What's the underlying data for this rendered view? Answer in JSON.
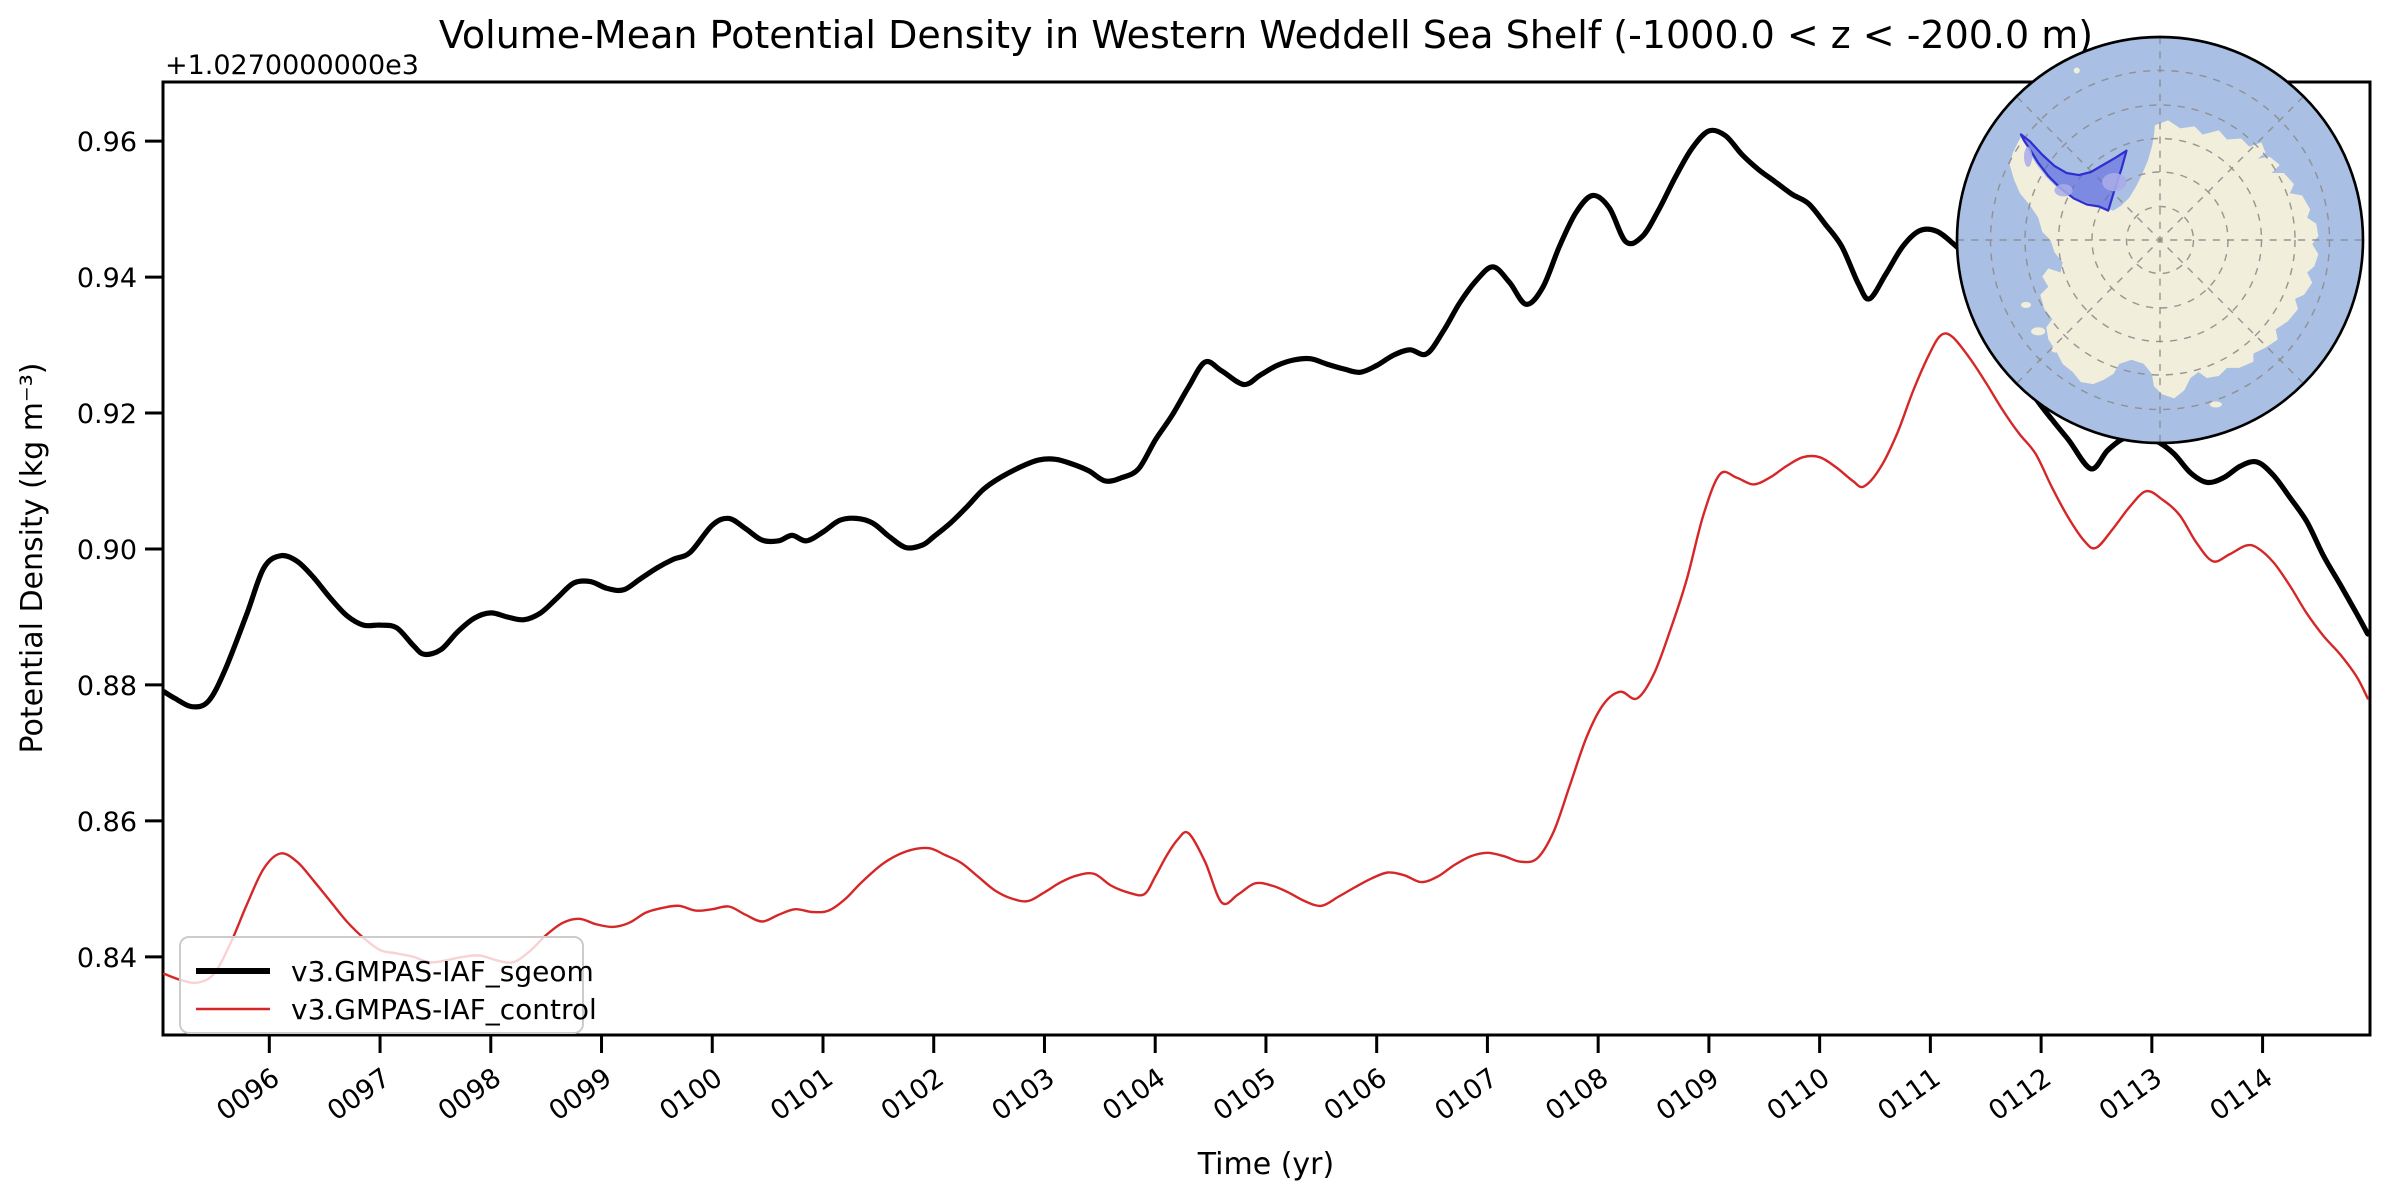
{
  "chart_data": {
    "type": "line",
    "title": "Volume-Mean Potential Density in Western Weddell Sea Shelf (-1000.0 < z < -200.0 m)",
    "xlabel": "Time (yr)",
    "ylabel": "Potential Density (kg m⁻³)",
    "y_offset_text": "+1.0270000000e3",
    "xlim": [
      95.04,
      114.97
    ],
    "ylim": [
      0.8285,
      0.9687
    ],
    "grid": false,
    "legend_position": "lower left",
    "x_tick_values": [
      96,
      97,
      98,
      99,
      100,
      101,
      102,
      103,
      104,
      105,
      106,
      107,
      108,
      109,
      110,
      111,
      112,
      113,
      114
    ],
    "x_tick_labels": [
      "0096",
      "0097",
      "0098",
      "0099",
      "0100",
      "0101",
      "0102",
      "0103",
      "0104",
      "0105",
      "0106",
      "0107",
      "0108",
      "0109",
      "0110",
      "0111",
      "0112",
      "0113",
      "0114"
    ],
    "y_tick_values": [
      0.84,
      0.86,
      0.88,
      0.9,
      0.92,
      0.94,
      0.96
    ],
    "y_tick_labels": [
      "0.84",
      "0.86",
      "0.88",
      "0.90",
      "0.92",
      "0.94",
      "0.96"
    ],
    "series": [
      {
        "name": "v3.GMPAS-IAF_sgeom",
        "color": "#000000",
        "linewidth": 5.2,
        "points": [
          [
            95.05,
            0.879
          ],
          [
            95.15,
            0.878
          ],
          [
            95.3,
            0.8768
          ],
          [
            95.45,
            0.8776
          ],
          [
            95.6,
            0.8822
          ],
          [
            95.8,
            0.8906
          ],
          [
            95.95,
            0.8972
          ],
          [
            96.1,
            0.899
          ],
          [
            96.25,
            0.8982
          ],
          [
            96.4,
            0.8958
          ],
          [
            96.55,
            0.8928
          ],
          [
            96.7,
            0.8902
          ],
          [
            96.85,
            0.8888
          ],
          [
            97.0,
            0.8888
          ],
          [
            97.15,
            0.8884
          ],
          [
            97.3,
            0.8858
          ],
          [
            97.4,
            0.8845
          ],
          [
            97.55,
            0.8852
          ],
          [
            97.7,
            0.8878
          ],
          [
            97.85,
            0.8898
          ],
          [
            98.0,
            0.8906
          ],
          [
            98.15,
            0.89
          ],
          [
            98.3,
            0.8896
          ],
          [
            98.45,
            0.8906
          ],
          [
            98.6,
            0.8928
          ],
          [
            98.75,
            0.895
          ],
          [
            98.9,
            0.8952
          ],
          [
            99.05,
            0.8942
          ],
          [
            99.2,
            0.894
          ],
          [
            99.35,
            0.8956
          ],
          [
            99.5,
            0.8972
          ],
          [
            99.65,
            0.8985
          ],
          [
            99.8,
            0.8995
          ],
          [
            100.0,
            0.9035
          ],
          [
            100.15,
            0.9045
          ],
          [
            100.3,
            0.903
          ],
          [
            100.45,
            0.9013
          ],
          [
            100.6,
            0.9012
          ],
          [
            100.72,
            0.902
          ],
          [
            100.85,
            0.9012
          ],
          [
            101.0,
            0.9025
          ],
          [
            101.15,
            0.9042
          ],
          [
            101.3,
            0.9045
          ],
          [
            101.45,
            0.9038
          ],
          [
            101.6,
            0.9018
          ],
          [
            101.75,
            0.9002
          ],
          [
            101.9,
            0.9006
          ],
          [
            102.0,
            0.9018
          ],
          [
            102.15,
            0.9038
          ],
          [
            102.3,
            0.9062
          ],
          [
            102.45,
            0.9088
          ],
          [
            102.6,
            0.9105
          ],
          [
            102.8,
            0.9122
          ],
          [
            102.95,
            0.9131
          ],
          [
            103.1,
            0.9132
          ],
          [
            103.25,
            0.9125
          ],
          [
            103.4,
            0.9115
          ],
          [
            103.55,
            0.91
          ],
          [
            103.7,
            0.9105
          ],
          [
            103.85,
            0.9118
          ],
          [
            104.0,
            0.916
          ],
          [
            104.15,
            0.9196
          ],
          [
            104.3,
            0.9238
          ],
          [
            104.45,
            0.9275
          ],
          [
            104.6,
            0.9262
          ],
          [
            104.8,
            0.9242
          ],
          [
            104.95,
            0.9256
          ],
          [
            105.1,
            0.927
          ],
          [
            105.25,
            0.9278
          ],
          [
            105.4,
            0.928
          ],
          [
            105.55,
            0.9272
          ],
          [
            105.7,
            0.9265
          ],
          [
            105.85,
            0.926
          ],
          [
            106.0,
            0.927
          ],
          [
            106.15,
            0.9285
          ],
          [
            106.3,
            0.9293
          ],
          [
            106.45,
            0.9287
          ],
          [
            106.6,
            0.932
          ],
          [
            106.75,
            0.9362
          ],
          [
            106.9,
            0.9395
          ],
          [
            107.05,
            0.9415
          ],
          [
            107.2,
            0.9392
          ],
          [
            107.35,
            0.936
          ],
          [
            107.5,
            0.9385
          ],
          [
            107.65,
            0.9445
          ],
          [
            107.8,
            0.9495
          ],
          [
            107.95,
            0.952
          ],
          [
            108.1,
            0.9502
          ],
          [
            108.25,
            0.9452
          ],
          [
            108.4,
            0.946
          ],
          [
            108.55,
            0.95
          ],
          [
            108.7,
            0.9548
          ],
          [
            108.85,
            0.959
          ],
          [
            109.0,
            0.9615
          ],
          [
            109.15,
            0.9608
          ],
          [
            109.3,
            0.958
          ],
          [
            109.45,
            0.9558
          ],
          [
            109.6,
            0.954
          ],
          [
            109.75,
            0.9522
          ],
          [
            109.9,
            0.9508
          ],
          [
            110.05,
            0.9478
          ],
          [
            110.2,
            0.9445
          ],
          [
            110.35,
            0.939
          ],
          [
            110.45,
            0.9368
          ],
          [
            110.6,
            0.9405
          ],
          [
            110.75,
            0.9445
          ],
          [
            110.9,
            0.9468
          ],
          [
            111.05,
            0.9468
          ],
          [
            111.2,
            0.945
          ],
          [
            111.35,
            0.9425
          ],
          [
            111.5,
            0.938
          ],
          [
            111.65,
            0.932
          ],
          [
            111.8,
            0.9262
          ],
          [
            111.95,
            0.9222
          ],
          [
            112.1,
            0.919
          ],
          [
            112.25,
            0.916
          ],
          [
            112.45,
            0.9118
          ],
          [
            112.6,
            0.9145
          ],
          [
            112.75,
            0.9163
          ],
          [
            112.9,
            0.9165
          ],
          [
            113.05,
            0.9158
          ],
          [
            113.2,
            0.914
          ],
          [
            113.35,
            0.9112
          ],
          [
            113.5,
            0.9098
          ],
          [
            113.65,
            0.9105
          ],
          [
            113.8,
            0.9122
          ],
          [
            113.95,
            0.9128
          ],
          [
            114.1,
            0.9108
          ],
          [
            114.25,
            0.9075
          ],
          [
            114.4,
            0.904
          ],
          [
            114.55,
            0.899
          ],
          [
            114.7,
            0.8948
          ],
          [
            114.85,
            0.8905
          ],
          [
            114.95,
            0.8875
          ]
        ]
      },
      {
        "name": "v3.GMPAS-IAF_control",
        "color": "#d62728",
        "linewidth": 2.4,
        "points": [
          [
            95.05,
            0.8375
          ],
          [
            95.2,
            0.8366
          ],
          [
            95.35,
            0.8362
          ],
          [
            95.5,
            0.8375
          ],
          [
            95.65,
            0.842
          ],
          [
            95.8,
            0.8478
          ],
          [
            95.95,
            0.853
          ],
          [
            96.1,
            0.8552
          ],
          [
            96.25,
            0.854
          ],
          [
            96.4,
            0.8512
          ],
          [
            96.55,
            0.8482
          ],
          [
            96.7,
            0.8452
          ],
          [
            96.85,
            0.8428
          ],
          [
            97.0,
            0.841
          ],
          [
            97.15,
            0.8405
          ],
          [
            97.3,
            0.84
          ],
          [
            97.45,
            0.8392
          ],
          [
            97.6,
            0.8395
          ],
          [
            97.75,
            0.84
          ],
          [
            97.9,
            0.8402
          ],
          [
            98.05,
            0.8395
          ],
          [
            98.2,
            0.8392
          ],
          [
            98.35,
            0.8408
          ],
          [
            98.5,
            0.8432
          ],
          [
            98.65,
            0.845
          ],
          [
            98.8,
            0.8456
          ],
          [
            98.95,
            0.8448
          ],
          [
            99.1,
            0.8444
          ],
          [
            99.25,
            0.845
          ],
          [
            99.4,
            0.8465
          ],
          [
            99.55,
            0.8472
          ],
          [
            99.7,
            0.8475
          ],
          [
            99.85,
            0.8468
          ],
          [
            100.0,
            0.847
          ],
          [
            100.15,
            0.8474
          ],
          [
            100.3,
            0.8462
          ],
          [
            100.45,
            0.8452
          ],
          [
            100.6,
            0.8462
          ],
          [
            100.75,
            0.847
          ],
          [
            100.9,
            0.8466
          ],
          [
            101.05,
            0.8468
          ],
          [
            101.2,
            0.8485
          ],
          [
            101.35,
            0.851
          ],
          [
            101.55,
            0.8538
          ],
          [
            101.75,
            0.8555
          ],
          [
            101.95,
            0.856
          ],
          [
            102.1,
            0.855
          ],
          [
            102.25,
            0.8538
          ],
          [
            102.4,
            0.8518
          ],
          [
            102.55,
            0.8498
          ],
          [
            102.7,
            0.8486
          ],
          [
            102.85,
            0.8482
          ],
          [
            103.0,
            0.8495
          ],
          [
            103.15,
            0.851
          ],
          [
            103.3,
            0.852
          ],
          [
            103.45,
            0.8522
          ],
          [
            103.6,
            0.8505
          ],
          [
            103.75,
            0.8495
          ],
          [
            103.9,
            0.8492
          ],
          [
            104.0,
            0.8518
          ],
          [
            104.1,
            0.8548
          ],
          [
            104.2,
            0.8572
          ],
          [
            104.3,
            0.8582
          ],
          [
            104.45,
            0.854
          ],
          [
            104.6,
            0.848
          ],
          [
            104.75,
            0.8492
          ],
          [
            104.9,
            0.8508
          ],
          [
            105.05,
            0.8505
          ],
          [
            105.2,
            0.8495
          ],
          [
            105.35,
            0.8482
          ],
          [
            105.5,
            0.8475
          ],
          [
            105.65,
            0.8488
          ],
          [
            105.8,
            0.8502
          ],
          [
            105.95,
            0.8515
          ],
          [
            106.1,
            0.8524
          ],
          [
            106.25,
            0.852
          ],
          [
            106.4,
            0.851
          ],
          [
            106.55,
            0.8518
          ],
          [
            106.7,
            0.8535
          ],
          [
            106.85,
            0.8548
          ],
          [
            107.0,
            0.8553
          ],
          [
            107.15,
            0.8548
          ],
          [
            107.3,
            0.854
          ],
          [
            107.45,
            0.8545
          ],
          [
            107.6,
            0.8585
          ],
          [
            107.75,
            0.8655
          ],
          [
            107.9,
            0.8725
          ],
          [
            108.05,
            0.8772
          ],
          [
            108.2,
            0.879
          ],
          [
            108.35,
            0.878
          ],
          [
            108.5,
            0.8815
          ],
          [
            108.65,
            0.888
          ],
          [
            108.8,
            0.8955
          ],
          [
            108.95,
            0.905
          ],
          [
            109.1,
            0.911
          ],
          [
            109.25,
            0.9105
          ],
          [
            109.4,
            0.9095
          ],
          [
            109.55,
            0.9105
          ],
          [
            109.7,
            0.9122
          ],
          [
            109.85,
            0.9135
          ],
          [
            110.0,
            0.9135
          ],
          [
            110.15,
            0.912
          ],
          [
            110.3,
            0.91
          ],
          [
            110.4,
            0.9092
          ],
          [
            110.55,
            0.912
          ],
          [
            110.7,
            0.917
          ],
          [
            110.85,
            0.9235
          ],
          [
            111.0,
            0.929
          ],
          [
            111.1,
            0.9315
          ],
          [
            111.2,
            0.9312
          ],
          [
            111.35,
            0.9282
          ],
          [
            111.5,
            0.9245
          ],
          [
            111.65,
            0.9205
          ],
          [
            111.8,
            0.917
          ],
          [
            111.95,
            0.914
          ],
          [
            112.1,
            0.909
          ],
          [
            112.25,
            0.9045
          ],
          [
            112.4,
            0.901
          ],
          [
            112.5,
            0.9002
          ],
          [
            112.65,
            0.903
          ],
          [
            112.8,
            0.9062
          ],
          [
            112.95,
            0.9085
          ],
          [
            113.1,
            0.9072
          ],
          [
            113.25,
            0.905
          ],
          [
            113.4,
            0.901
          ],
          [
            113.55,
            0.8982
          ],
          [
            113.7,
            0.8992
          ],
          [
            113.85,
            0.9005
          ],
          [
            113.95,
            0.9002
          ],
          [
            114.1,
            0.898
          ],
          [
            114.25,
            0.8945
          ],
          [
            114.4,
            0.8905
          ],
          [
            114.55,
            0.8872
          ],
          [
            114.7,
            0.8845
          ],
          [
            114.85,
            0.8812
          ],
          [
            114.95,
            0.878
          ]
        ]
      }
    ],
    "inset_map": {
      "description": "South polar stereographic locator map of Antarctica with Western Weddell Sea Shelf region highlighted",
      "ocean_color": "#a9bfe3",
      "land_color": "#f1eedb",
      "region_fill": "#5a5ee0",
      "region_fill_opacity": 0.55,
      "region_outline": "#2f2fd0",
      "region_light_patch": "#a8abe8",
      "graticule_color": "#8c8c8c",
      "border_color": "#000000"
    }
  }
}
